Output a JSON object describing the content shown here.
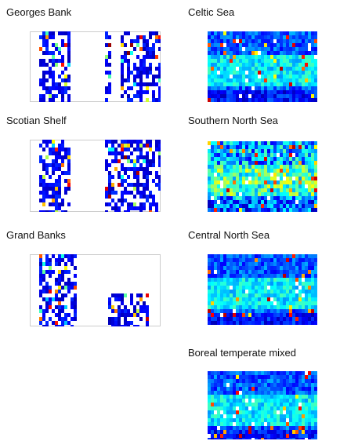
{
  "panels": [
    {
      "title": "Georges Bank"
    },
    {
      "title": "Celtic Sea"
    },
    {
      "title": "Scotian Shelf"
    },
    {
      "title": "Southern North Sea"
    },
    {
      "title": "Grand Banks"
    },
    {
      "title": "Central North Sea"
    },
    {
      "title": "Boreal temperate mixed"
    }
  ]
}
